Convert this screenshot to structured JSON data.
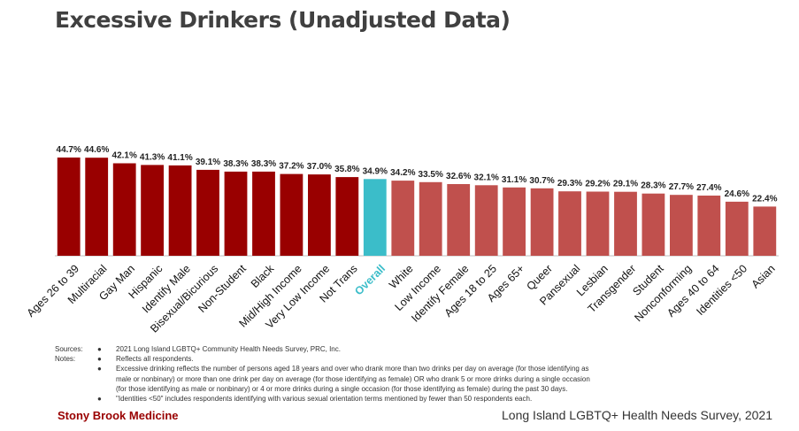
{
  "title": "Excessive Drinkers (Unadjusted Data)",
  "colors": {
    "dark": "#990000",
    "light": "#c0504d",
    "highlight": "#3bbdc9",
    "axis": "#bfbfbf"
  },
  "chart_data": {
    "type": "bar",
    "categories": [
      "Ages 26 to 39",
      "Multiracial",
      "Gay Man",
      "Hispanic",
      "Identify Male",
      "Bisexual/Bicurious",
      "Non-Student",
      "Black",
      "Mid/High Income",
      "Very Low Income",
      "Not Trans",
      "Overall",
      "White",
      "Low Income",
      "Identify Female",
      "Ages 18 to 25",
      "Ages 65+",
      "Queer",
      "Pansexual",
      "Lesbian",
      "Transgender",
      "Student",
      "Nonconforming",
      "Ages 40 to 64",
      "Identities <50",
      "Asian"
    ],
    "values": [
      44.7,
      44.6,
      42.1,
      41.3,
      41.1,
      39.1,
      38.3,
      38.3,
      37.2,
      37.0,
      35.8,
      34.9,
      34.2,
      33.5,
      32.6,
      32.1,
      31.1,
      30.7,
      29.3,
      29.2,
      29.1,
      28.3,
      27.7,
      27.4,
      24.6,
      22.4
    ],
    "labels": [
      "44.7%",
      "44.6%",
      "42.1%",
      "41.3%",
      "41.1%",
      "39.1%",
      "38.3%",
      "38.3%",
      "37.2%",
      "37.0%",
      "35.8%",
      "34.9%",
      "34.2%",
      "33.5%",
      "32.6%",
      "32.1%",
      "31.1%",
      "30.7%",
      "29.3%",
      "29.2%",
      "29.1%",
      "28.3%",
      "27.7%",
      "27.4%",
      "24.6%",
      "22.4%"
    ],
    "groups": [
      "above",
      "above",
      "above",
      "above",
      "above",
      "above",
      "above",
      "above",
      "above",
      "above",
      "above",
      "overall",
      "below",
      "below",
      "below",
      "below",
      "below",
      "below",
      "below",
      "below",
      "below",
      "below",
      "below",
      "below",
      "below",
      "below"
    ],
    "title": "Excessive Drinkers (Unadjusted Data)",
    "ylim": [
      0,
      50
    ],
    "grid": false,
    "legend": "none"
  },
  "notes": {
    "sources_label": "Sources:",
    "notes_label": "Notes:",
    "bullet": "●",
    "source_text": "2021 Long Island LGBTQ+ Community Health Needs Survey, PRC, Inc.",
    "note1": "Reflects all respondents.",
    "note2_line1": "Excessive drinking reflects the number of persons aged 18 years and over who drank more than two drinks per day on average (for those identifying as",
    "note2_line2": "male or nonbinary) or more than one drink per day on average (for those identifying as female) OR who drank 5 or more drinks during a single occasion",
    "note2_line3": "(for those identifying as male or nonbinary) or 4 or more drinks during a single occasion (for those identifying as female) during the past 30 days.",
    "note3": "\"Identities <50\" includes respondents identifying with various sexual orientation terms mentioned by fewer than 50 respondents each."
  },
  "footer": {
    "left": "Stony Brook Medicine",
    "right": "Long Island LGBTQ+ Health Needs Survey, 2021"
  }
}
